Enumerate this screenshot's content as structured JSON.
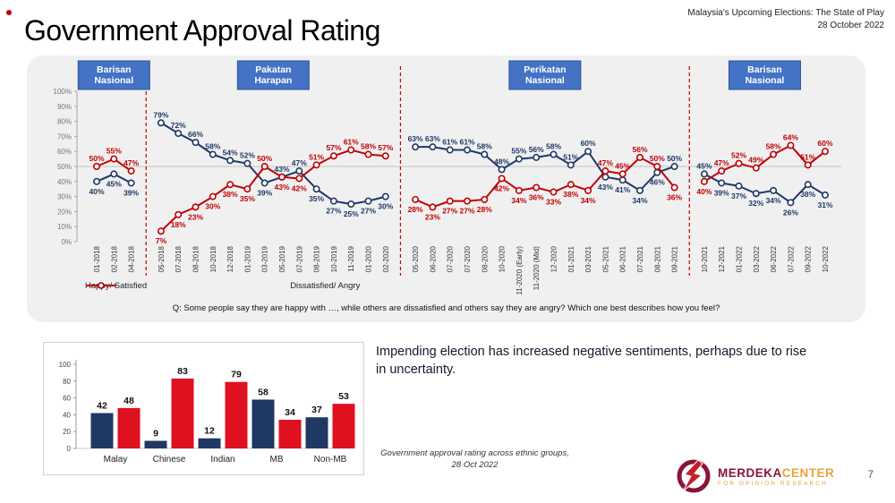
{
  "slide": {
    "title": "Government Approval Rating",
    "header_right_line1": "Malaysia's Upcoming Elections: The State of Play",
    "header_right_line2": "28 October 2022",
    "page_number": "7"
  },
  "question": "Q: Some people say they are happy with …, while others are dissatisfied and others say they are angry? Which one best describes how you feel?",
  "insight": "Impending election has increased negative sentiments, perhaps due to rise in uncertainty.",
  "caption": {
    "line1": "Government approval rating across ethnic groups,",
    "line2": "28 Oct 2022"
  },
  "logo": {
    "brand_primary": "MERDEKA",
    "brand_secondary": "CENTER",
    "tagline": "FOR OPINION RESEARCH"
  },
  "colors": {
    "happy_line": "#203864",
    "dissatisfied_line": "#C00000",
    "bar_blue": "#1F3864",
    "bar_red": "#DF1020",
    "section_box_fill": "#4472C4",
    "section_box_border": "#2F5597",
    "separator_dashed": "#C00000"
  },
  "chart_data": [
    {
      "type": "line",
      "title": "Government approval rating over time",
      "ylim": [
        0,
        100
      ],
      "ytick_step": 10,
      "ytick_suffix": "%",
      "grid_line_at": 50,
      "legend_position": "bottom-left",
      "series": [
        {
          "key": "happy",
          "name": "Happy/ Satisfied",
          "color": "#203864"
        },
        {
          "key": "dissatisfied",
          "name": "Dissatisfied/ Angry",
          "color": "#C00000"
        }
      ],
      "sections": [
        {
          "header": "Barisan Nasional",
          "x": [
            "01-2018",
            "02-2018",
            "04-2018"
          ],
          "happy": [
            40,
            45,
            39
          ],
          "dissatisfied": [
            50,
            55,
            47
          ]
        },
        {
          "header": "Pakatan Harapan",
          "x": [
            "05-2018",
            "07-2018",
            "08-2018",
            "10-2018",
            "12-2018",
            "01-2019",
            "03-2019",
            "05-2019",
            "07-2019",
            "08-2019",
            "10-2019",
            "11-2019",
            "01-2020",
            "02-2020"
          ],
          "happy": [
            79,
            72,
            66,
            58,
            54,
            52,
            39,
            43,
            47,
            35,
            27,
            25,
            27,
            30
          ],
          "dissatisfied": [
            7,
            18,
            23,
            30,
            38,
            35,
            50,
            43,
            42,
            51,
            57,
            61,
            58,
            57
          ]
        },
        {
          "header": "Perikatan Nasional",
          "x": [
            "05-2020",
            "06-2020",
            "07-2020",
            "07-2020",
            "08-2020",
            "10-2020",
            "11-2020 (Early)",
            "11-2020 (Mid)",
            "12-2020",
            "01-2021",
            "03-2021",
            "05-2021",
            "06-2021",
            "07-2021",
            "08-2021",
            "09-2021"
          ],
          "happy": [
            63,
            63,
            61,
            61,
            58,
            48,
            55,
            56,
            58,
            51,
            60,
            43,
            41,
            34,
            46,
            50
          ],
          "dissatisfied": [
            28,
            23,
            27,
            27,
            28,
            42,
            34,
            36,
            33,
            38,
            34,
            47,
            45,
            56,
            50,
            36
          ]
        },
        {
          "header": "Barisan Nasional",
          "x": [
            "10-2021",
            "12-2021",
            "01-2022",
            "03-2022",
            "06-2022",
            "07-2022",
            "09-2022",
            "10-2022"
          ],
          "happy": [
            45,
            39,
            37,
            32,
            34,
            26,
            38,
            31
          ],
          "dissatisfied": [
            40,
            47,
            52,
            49,
            58,
            64,
            51,
            60
          ]
        }
      ]
    },
    {
      "type": "bar",
      "title": "Government approval rating across ethnic groups, 28 Oct 2022",
      "categories": [
        "Malay",
        "Chinese",
        "Indian",
        "MB",
        "Non-MB"
      ],
      "series": [
        {
          "name": "Happy/ Satisfied",
          "color": "#1F3864",
          "values": [
            42,
            9,
            12,
            58,
            37
          ]
        },
        {
          "name": "Dissatisfied/ Angry",
          "color": "#DF1020",
          "values": [
            48,
            83,
            79,
            34,
            53
          ]
        }
      ],
      "ylim": [
        0,
        100
      ],
      "ytick_step": 20,
      "grid": false,
      "legend_position": "none"
    }
  ]
}
